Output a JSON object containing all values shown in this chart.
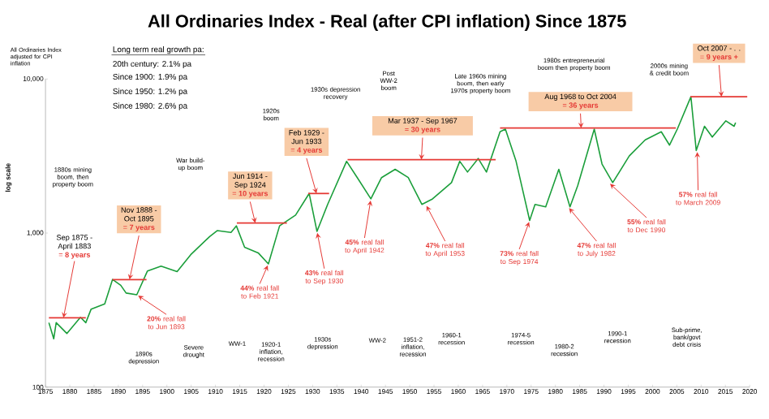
{
  "chart_data": {
    "type": "line",
    "title": "All Ordinaries Index - Real (after CPI inflation) Since 1875",
    "ylabel": "log scale",
    "log": true,
    "xlim": [
      1875,
      2020
    ],
    "xticks": [
      1875,
      1880,
      1885,
      1890,
      1895,
      1900,
      1905,
      1910,
      1915,
      1920,
      1925,
      1930,
      1935,
      1940,
      1945,
      1950,
      1955,
      1960,
      1965,
      1970,
      1975,
      1980,
      1985,
      1990,
      1995,
      2000,
      2005,
      2010,
      2015,
      2020
    ],
    "ylim": [
      100,
      10000
    ],
    "yticks": [
      {
        "value": 100,
        "label": "100"
      },
      {
        "value": 1000,
        "label": "1,000"
      },
      {
        "value": 10000,
        "label": "10,000"
      }
    ],
    "series": [
      {
        "color": "#1a9e3a",
        "x": [
          1875.7,
          1876.7,
          1877.2,
          1879.4,
          1882.2,
          1883.3,
          1884.4,
          1887.2,
          1888.8,
          1890.5,
          1891.6,
          1893.8,
          1896,
          1898.8,
          1902.1,
          1904.9,
          1908.8,
          1910.4,
          1913.2,
          1914.3,
          1916,
          1918.8,
          1920.9,
          1923.2,
          1926.5,
          1929.3,
          1930.9,
          1933.1,
          1937,
          1939.2,
          1942,
          1944.2,
          1947,
          1949.7,
          1952.5,
          1954.7,
          1958.6,
          1960.3,
          1961.9,
          1964.1,
          1965.8,
          1968.6,
          1969.7,
          1970.8,
          1971.9,
          1974.7,
          1975.8,
          1978,
          1980.7,
          1983,
          1984.6,
          1988,
          1989.6,
          1991.8,
          1995.2,
          1998.5,
          2001.8,
          2003.5,
          2005.1,
          2007.9,
          2009,
          2010.7,
          2012.3,
          2015.1,
          2016.8,
          2017.1
        ],
        "values": [
          262,
          206,
          262,
          223,
          284,
          262,
          321,
          347,
          500,
          458,
          408,
          398,
          568,
          610,
          562,
          724,
          949,
          1038,
          1010,
          1114,
          809,
          744,
          631,
          1114,
          1309,
          1807,
          1026,
          1535,
          2925,
          2292,
          1667,
          2292,
          2595,
          2292,
          1535,
          1667,
          2126,
          2925,
          2490,
          3050,
          2490,
          4547,
          4730,
          3724,
          2925,
          1208,
          1535,
          1479,
          2595,
          1479,
          2036,
          4730,
          2806,
          2126,
          3163,
          4028,
          4547,
          3724,
          4730,
          7674,
          3436,
          4935,
          4200,
          5350,
          4935,
          5213
        ]
      },
      {
        "color": "#e53935",
        "x": [
          1875.7,
          1883.3
        ],
        "values": [
          282,
          282
        ]
      },
      {
        "color": "#e53935",
        "x": [
          1888.8,
          1895.8
        ],
        "values": [
          499,
          499
        ]
      },
      {
        "color": "#e53935",
        "x": [
          1914.4,
          1924.7
        ],
        "values": [
          1162,
          1162
        ]
      },
      {
        "color": "#e53935",
        "x": [
          1929.1,
          1933.4
        ],
        "values": [
          1807,
          1807
        ]
      },
      {
        "color": "#e53935",
        "x": [
          1937.2,
          1967.7
        ],
        "values": [
          2995,
          2995
        ]
      },
      {
        "color": "#e53935",
        "x": [
          1968.6,
          2004.8
        ],
        "values": [
          4810,
          4810
        ]
      },
      {
        "color": "#e53935",
        "x": [
          2007.8,
          2019.5
        ],
        "values": [
          7674,
          7674
        ]
      }
    ],
    "annotations": [
      "All Ordinaries Index adjusted for CPI inflation",
      "Long term real growth pa:",
      "20th century: 2.1% pa",
      "Since 1900: 1.9% pa",
      "Since 1950: 1.2% pa",
      "Since 1980: 2.6% pa",
      "1880s mining boom, then property boom",
      "War build-up boom",
      "1920s boom",
      "1930s depression recovery",
      "Post WW-2 boom",
      "Late 1960s mining boom, then early 1970s property boom",
      "1980s entrepreneurial boom then property boom",
      "2000s mining & credit boom",
      "Sep 1875 - April 1883",
      {
        "text": "= **8 years**",
        "x": 1878.7,
        "y": 282
      },
      "Nov 1888 - Oct 1895",
      {
        "text": "= **7 years**",
        "x": 1892.3,
        "y": 499
      },
      "Jun 1914 - Sep 1924",
      {
        "text": "= **10 years**",
        "x": 1918.2,
        "y": 1162
      },
      "Feb 1929 - Jun 1933",
      {
        "text": "= **4 years**",
        "x": 1930.8,
        "y": 1807
      },
      "Mar 1937 - Sep 1967",
      {
        "text": "= **30 years**",
        "x": 1952.4,
        "y": 2995
      },
      "Aug 1968 to Oct 2004",
      {
        "text": "= **36 years**",
        "x": 1985.3,
        "y": 4810
      },
      "Oct 2007 - . .",
      {
        "text": "= **9 years +**",
        "x": 2014.2,
        "y": 7674
      },
      {
        "text": "**20%** real fall to Jun 1893",
        "x": 1893.8,
        "y": 398
      },
      {
        "text": "**44%** real fall to Feb 1921",
        "x": 1920.9,
        "y": 631
      },
      {
        "text": "**43%** real fall to Sep 1930",
        "x": 1930.9,
        "y": 1026
      },
      {
        "text": "**45%** real fall to April 1942",
        "x": 1942,
        "y": 1667
      },
      {
        "text": "**47%** real fall to April 1953",
        "x": 1953.3,
        "y": 1535
      },
      {
        "text": "**73%** real fall to Sep 1974",
        "x": 1974.7,
        "y": 1208
      },
      {
        "text": "**47%** real fall to July 1982",
        "x": 1982.6,
        "y": 1479
      },
      {
        "text": "**55%** real fall to Dec 1990",
        "x": 1991,
        "y": 2126
      },
      {
        "text": "**57%** real fall to March 2009",
        "x": 2009.2,
        "y": 3436
      },
      "1890s depression",
      "Severe drought",
      "WW-1",
      "1920-1 inflation, recession",
      "1930s depression",
      "WW-2",
      "1951-2 inflation, recession",
      "1960-1 recession",
      "1974-5 recession",
      "1980-2 recession",
      "1990-1 recession",
      "Sub-prime, bank/govt debt crisis"
    ]
  }
}
